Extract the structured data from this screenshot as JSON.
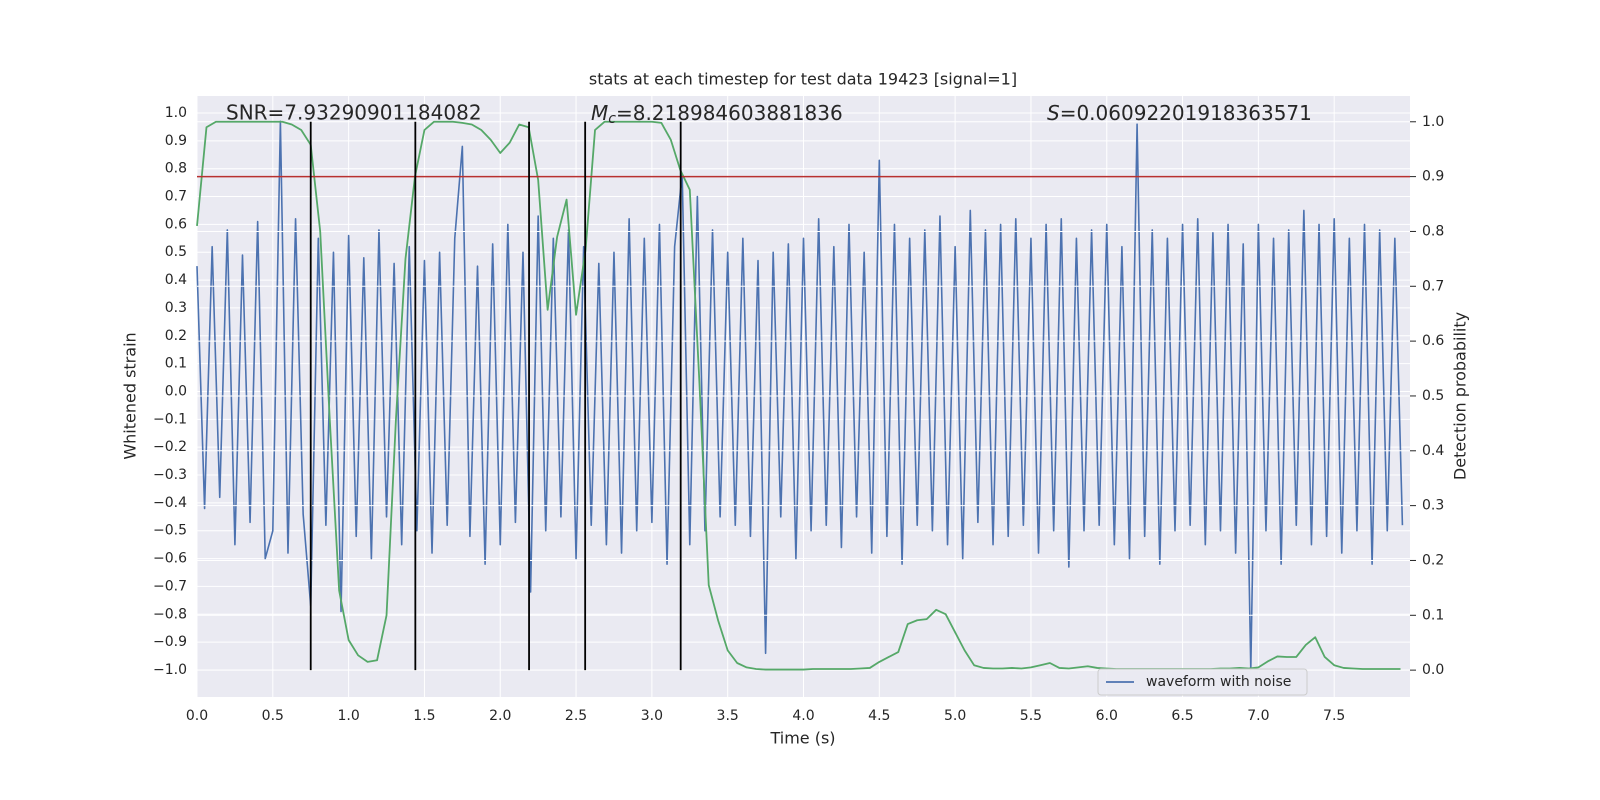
{
  "chart_data": {
    "type": "line",
    "title": "stats at each timestep for test data 19423 [signal=1]",
    "xlabel": "Time (s)",
    "ylabel": "Whitened strain",
    "y2label": "Detection probability",
    "annotations": [
      {
        "text": "SNR=7.93290901184082"
      },
      {
        "symbol": "M",
        "subscript": "c",
        "text": "=8.218984603881836"
      },
      {
        "symbol": "S",
        "text": "=0.06092201918363571"
      }
    ],
    "xlim": [
      0,
      8
    ],
    "ylim": [
      -1.097,
      1.061
    ],
    "y2lim": [
      -0.049,
      1.047
    ],
    "xticks": [
      {
        "value": 0,
        "label": "0.0"
      },
      0.5,
      {
        "value": 1,
        "label": "1.0"
      },
      1.5,
      {
        "value": 2,
        "label": "2.0"
      },
      2.5,
      {
        "value": 3,
        "label": "3.0"
      },
      3.5,
      {
        "value": 4,
        "label": "4.0"
      },
      4.5,
      {
        "value": 5,
        "label": "5.0"
      },
      5.5,
      {
        "value": 6,
        "label": "6.0"
      },
      6.5,
      {
        "value": 7,
        "label": "7.0"
      },
      7.5
    ],
    "yticks": [
      {
        "value": -1,
        "label": "−1.0"
      },
      {
        "value": -0.9,
        "label": "−0.9"
      },
      {
        "value": -0.8,
        "label": "−0.8"
      },
      {
        "value": -0.7,
        "label": "−0.7"
      },
      {
        "value": -0.6,
        "label": "−0.6"
      },
      {
        "value": -0.5,
        "label": "−0.5"
      },
      {
        "value": -0.4,
        "label": "−0.4"
      },
      {
        "value": -0.3,
        "label": "−0.3"
      },
      {
        "value": -0.2,
        "label": "−0.2"
      },
      {
        "value": -0.1,
        "label": "−0.1"
      },
      {
        "value": 0,
        "label": "0.0"
      },
      0.1,
      0.2,
      0.3,
      0.4,
      0.5,
      0.6,
      0.7,
      0.8,
      0.9,
      {
        "value": 1,
        "label": "1.0"
      }
    ],
    "y2ticks": [
      {
        "value": 0,
        "label": "0.0"
      },
      0.1,
      0.2,
      0.3,
      0.4,
      0.5,
      0.6,
      0.7,
      0.8,
      0.9,
      {
        "value": 1,
        "label": "1.0"
      }
    ],
    "grid": true,
    "legend": "lower right",
    "hline": {
      "y": 0.9,
      "axis": "y2",
      "color": "#b8312f"
    },
    "vlines": {
      "x": [
        0.75,
        1.44,
        2.19,
        2.56,
        3.19
      ],
      "ymin": 0,
      "ymax": 1,
      "axis": "y2",
      "color": "#000000"
    },
    "series": [
      {
        "name": "waveform with noise",
        "color": "#4c72b0",
        "x": [
          0,
          0.05,
          0.1,
          0.15,
          0.2,
          0.25,
          0.3,
          0.35,
          0.4,
          0.45,
          0.5,
          0.55,
          0.6,
          0.65,
          0.7,
          0.75,
          0.8,
          0.85,
          0.9,
          0.95,
          1,
          1.05,
          1.1,
          1.15,
          1.2,
          1.25,
          1.3,
          1.35,
          1.4,
          1.45,
          1.5,
          1.55,
          1.6,
          1.65,
          1.7,
          1.75,
          1.8,
          1.85,
          1.9,
          1.95,
          2,
          2.05,
          2.1,
          2.15,
          2.2,
          2.25,
          2.3,
          2.35,
          2.4,
          2.45,
          2.5,
          2.55,
          2.6,
          2.65,
          2.7,
          2.75,
          2.8,
          2.85,
          2.9,
          2.95,
          3,
          3.05,
          3.1,
          3.15,
          3.2,
          3.25,
          3.3,
          3.35,
          3.4,
          3.45,
          3.5,
          3.55,
          3.6,
          3.65,
          3.7,
          3.75,
          3.8,
          3.85,
          3.9,
          3.95,
          4,
          4.05,
          4.1,
          4.15,
          4.2,
          4.25,
          4.3,
          4.35,
          4.4,
          4.45,
          4.5,
          4.55,
          4.6,
          4.65,
          4.7,
          4.75,
          4.8,
          4.85,
          4.9,
          4.95,
          5,
          5.05,
          5.1,
          5.15,
          5.2,
          5.25,
          5.3,
          5.35,
          5.4,
          5.45,
          5.5,
          5.55,
          5.6,
          5.65,
          5.7,
          5.75,
          5.8,
          5.85,
          5.9,
          5.95,
          6,
          6.05,
          6.1,
          6.15,
          6.2,
          6.25,
          6.3,
          6.35,
          6.4,
          6.45,
          6.5,
          6.55,
          6.6,
          6.65,
          6.7,
          6.75,
          6.8,
          6.85,
          6.9,
          6.95,
          7,
          7.05,
          7.1,
          7.15,
          7.2,
          7.25,
          7.3,
          7.35,
          7.4,
          7.45,
          7.5,
          7.55,
          7.6,
          7.65,
          7.7,
          7.75,
          7.8,
          7.85,
          7.9,
          7.95
        ],
        "values": [
          0.45,
          -0.42,
          0.52,
          -0.38,
          0.58,
          -0.55,
          0.49,
          -0.47,
          0.61,
          -0.6,
          -0.5,
          0.97,
          -0.58,
          0.62,
          -0.44,
          -0.77,
          0.55,
          -0.48,
          0.5,
          -0.79,
          0.56,
          -0.52,
          0.48,
          -0.6,
          0.58,
          -0.45,
          0.46,
          -0.55,
          0.52,
          -0.5,
          0.47,
          -0.58,
          0.5,
          -0.48,
          0.55,
          0.88,
          -0.52,
          0.45,
          -0.62,
          0.53,
          -0.55,
          0.6,
          -0.47,
          0.5,
          -0.72,
          0.63,
          -0.5,
          0.55,
          -0.45,
          0.58,
          -0.6,
          0.52,
          -0.48,
          0.46,
          -0.55,
          0.5,
          -0.58,
          0.62,
          -0.5,
          0.55,
          -0.47,
          0.6,
          -0.62,
          0.52,
          0.78,
          -0.55,
          0.7,
          -0.5,
          0.58,
          -0.45,
          0.5,
          -0.48,
          0.55,
          -0.52,
          0.47,
          -0.94,
          0.5,
          -0.45,
          0.53,
          -0.6,
          0.55,
          -0.5,
          0.62,
          -0.48,
          0.52,
          -0.56,
          0.6,
          -0.45,
          0.5,
          -0.58,
          0.83,
          -0.52,
          0.6,
          -0.62,
          0.55,
          -0.48,
          0.58,
          -0.5,
          0.63,
          -0.55,
          0.52,
          -0.6,
          0.65,
          -0.47,
          0.58,
          -0.55,
          0.6,
          -0.52,
          0.62,
          -0.48,
          0.55,
          -0.58,
          0.6,
          -0.5,
          0.62,
          -0.63,
          0.55,
          -0.5,
          0.58,
          -0.48,
          0.6,
          -0.55,
          0.52,
          -0.6,
          0.96,
          -0.52,
          0.58,
          -0.62,
          0.55,
          -0.5,
          0.6,
          -0.48,
          0.62,
          -0.55,
          0.57,
          -0.5,
          0.6,
          -0.58,
          0.53,
          -1.0,
          0.6,
          -0.5,
          0.55,
          -0.62,
          0.58,
          -0.48,
          0.65,
          -0.55,
          0.6,
          -0.52,
          0.62,
          -0.58,
          0.55,
          -0.5,
          0.6,
          -0.62,
          0.58,
          -0.5,
          0.55,
          -0.48
        ]
      },
      {
        "color": "#55a868",
        "axis": "y2",
        "x": [
          0,
          0.0625,
          0.125,
          0.1875,
          0.25,
          0.3125,
          0.375,
          0.4375,
          0.5,
          0.5625,
          0.625,
          0.6875,
          0.75,
          0.8125,
          0.875,
          0.9375,
          1,
          1.0625,
          1.125,
          1.1875,
          1.25,
          1.3125,
          1.375,
          1.4375,
          1.5,
          1.5625,
          1.625,
          1.6875,
          1.75,
          1.8125,
          1.875,
          1.9375,
          2,
          2.0625,
          2.125,
          2.1875,
          2.25,
          2.3125,
          2.375,
          2.4375,
          2.5,
          2.5625,
          2.625,
          2.6875,
          2.75,
          2.8125,
          2.875,
          2.9375,
          3,
          3.0625,
          3.125,
          3.1875,
          3.25,
          3.3125,
          3.375,
          3.4375,
          3.5,
          3.5625,
          3.625,
          3.6875,
          3.75,
          3.8125,
          3.875,
          3.9375,
          4,
          4.0625,
          4.125,
          4.1875,
          4.25,
          4.3125,
          4.375,
          4.4375,
          4.5,
          4.5625,
          4.625,
          4.6875,
          4.75,
          4.8125,
          4.875,
          4.9375,
          5,
          5.0625,
          5.125,
          5.1875,
          5.25,
          5.3125,
          5.375,
          5.4375,
          5.5,
          5.5625,
          5.625,
          5.6875,
          5.75,
          5.8125,
          5.875,
          5.9375,
          6,
          6.0625,
          6.125,
          6.1875,
          6.25,
          6.3125,
          6.375,
          6.4375,
          6.5,
          6.5625,
          6.625,
          6.6875,
          6.75,
          6.8125,
          6.875,
          6.9375,
          7,
          7.0625,
          7.125,
          7.1875,
          7.25,
          7.3125,
          7.375,
          7.4375,
          7.5,
          7.5625,
          7.625,
          7.6875,
          7.75,
          7.8125,
          7.875,
          7.9375
        ],
        "values": [
          0.81,
          0.99,
          1.0,
          1.0,
          1.0,
          1.0,
          1.0,
          1.0,
          1.0,
          1.0,
          0.995,
          0.985,
          0.958,
          0.8,
          0.46,
          0.145,
          0.055,
          0.027,
          0.015,
          0.018,
          0.1,
          0.46,
          0.75,
          0.9,
          0.985,
          1.0,
          1.0,
          1.0,
          0.998,
          0.995,
          0.985,
          0.967,
          0.943,
          0.962,
          0.995,
          0.99,
          0.894,
          0.657,
          0.79,
          0.858,
          0.648,
          0.766,
          0.985,
          1.0,
          1.0,
          1.0,
          1.0,
          1.0,
          1.0,
          0.998,
          0.967,
          0.912,
          0.876,
          0.53,
          0.155,
          0.09,
          0.036,
          0.013,
          0.005,
          0.002,
          0.001,
          0.001,
          0.001,
          0.001,
          0.001,
          0.002,
          0.002,
          0.002,
          0.002,
          0.002,
          0.003,
          0.004,
          0.015,
          0.024,
          0.033,
          0.084,
          0.091,
          0.093,
          0.11,
          0.102,
          0.069,
          0.036,
          0.009,
          0.004,
          0.003,
          0.003,
          0.004,
          0.003,
          0.005,
          0.009,
          0.013,
          0.004,
          0.003,
          0.005,
          0.007,
          0.004,
          0.003,
          0.002,
          0.002,
          0.002,
          0.002,
          0.002,
          0.002,
          0.002,
          0.002,
          0.002,
          0.002,
          0.002,
          0.003,
          0.003,
          0.004,
          0.003,
          0.005,
          0.016,
          0.025,
          0.024,
          0.024,
          0.046,
          0.06,
          0.024,
          0.009,
          0.004,
          0.003,
          0.002,
          0.002,
          0.002,
          0.002,
          0.002
        ]
      }
    ]
  }
}
